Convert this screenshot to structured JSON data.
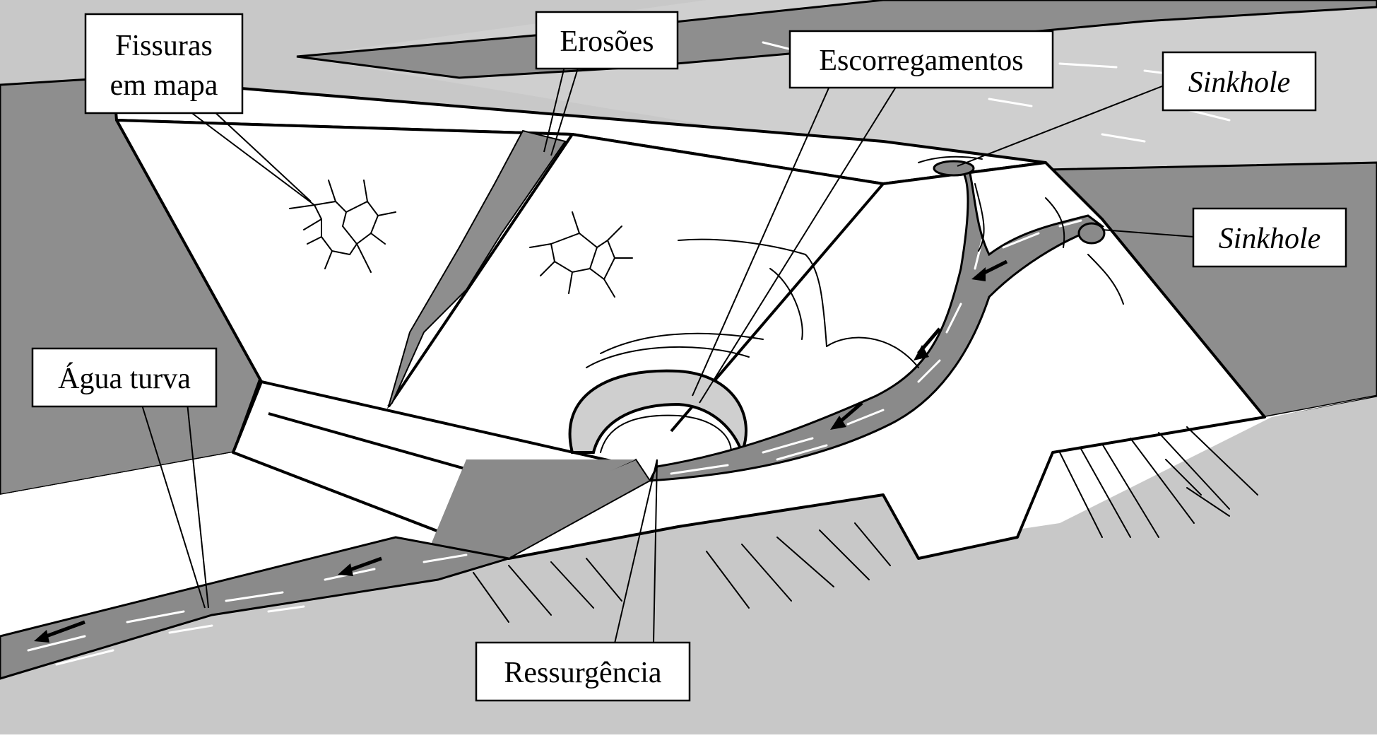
{
  "labels": {
    "fissuras_line1": "Fissuras",
    "fissuras_line2": "em mapa",
    "erosoes": "Erosões",
    "escorregamentos": "Escorregamentos",
    "sinkhole_top": "Sinkhole",
    "sinkhole_right": "Sinkhole",
    "agua_turva": "Água turva",
    "ressurgencia": "Ressurgência"
  },
  "colors": {
    "ground": "#c8c8c8",
    "dark_soil": "#8e8e8e",
    "water": "#8a8a8a",
    "reservoir": "#cfcfcf",
    "dam_face": "#ffffff",
    "outline": "#000000"
  }
}
